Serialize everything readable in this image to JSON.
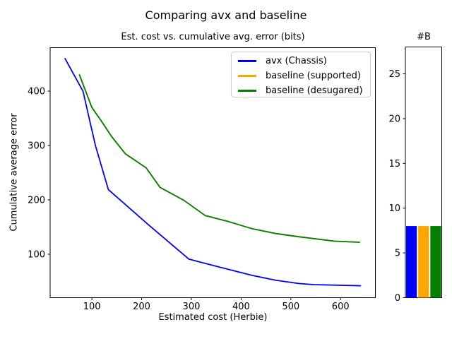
{
  "figure": {
    "suptitle": "Comparing avx and baseline",
    "background_color": "#ffffff",
    "text_color": "#000000"
  },
  "chart_data": [
    {
      "type": "line",
      "title": "Est. cost vs. cumulative avg. error (bits)",
      "xlabel": "Estimated cost (Herbie)",
      "ylabel": "Cumulative average error",
      "xlim": [
        16,
        670
      ],
      "ylim": [
        20,
        480
      ],
      "xticks": [
        100,
        200,
        300,
        400,
        500,
        600
      ],
      "yticks": [
        100,
        200,
        300,
        400
      ],
      "grid": false,
      "legend": {
        "location": "upper right",
        "border_color": "#cccccc"
      },
      "series": [
        {
          "name": "avx (Chassis)",
          "color": "#0000ff",
          "points": [
            [
              46,
              460
            ],
            [
              82,
              400
            ],
            [
              107,
              300
            ],
            [
              133,
              219
            ],
            [
              214,
              154
            ],
            [
              295,
              91
            ],
            [
              328,
              83
            ],
            [
              375,
              72
            ],
            [
              422,
              61
            ],
            [
              470,
              52
            ],
            [
              517,
              46
            ],
            [
              546,
              44
            ],
            [
              640,
              42
            ]
          ]
        },
        {
          "name": "baseline (supported)",
          "color": "#ffa500",
          "note": "coincides with baseline (desugared); hidden beneath the green line",
          "points": [
            [
              75,
              430
            ],
            [
              100,
              370
            ],
            [
              119,
              345
            ],
            [
              140,
              316
            ],
            [
              167,
              285
            ],
            [
              209,
              259
            ],
            [
              237,
              223
            ],
            [
              285,
              199
            ],
            [
              328,
              171
            ],
            [
              375,
              160
            ],
            [
              422,
              147
            ],
            [
              470,
              138
            ],
            [
              517,
              132
            ],
            [
              588,
              124
            ],
            [
              638,
              122
            ]
          ]
        },
        {
          "name": "baseline (desugared)",
          "color": "#008000",
          "points": [
            [
              75,
              430
            ],
            [
              100,
              370
            ],
            [
              119,
              345
            ],
            [
              140,
              316
            ],
            [
              167,
              285
            ],
            [
              209,
              259
            ],
            [
              237,
              223
            ],
            [
              285,
              199
            ],
            [
              328,
              171
            ],
            [
              375,
              160
            ],
            [
              422,
              147
            ],
            [
              470,
              138
            ],
            [
              517,
              132
            ],
            [
              588,
              124
            ],
            [
              638,
              122
            ]
          ]
        }
      ]
    },
    {
      "type": "bar",
      "title": "#B",
      "categories": [
        "avx (Chassis)",
        "baseline (supported)",
        "baseline (desugared)"
      ],
      "values": [
        8,
        8,
        8
      ],
      "colors": [
        "#0000ff",
        "#ffa500",
        "#008000"
      ],
      "ylim": [
        0,
        28
      ],
      "yticks": [
        0,
        5,
        10,
        15,
        20,
        25
      ],
      "xtick_labels_visible": false,
      "grid": false
    }
  ]
}
